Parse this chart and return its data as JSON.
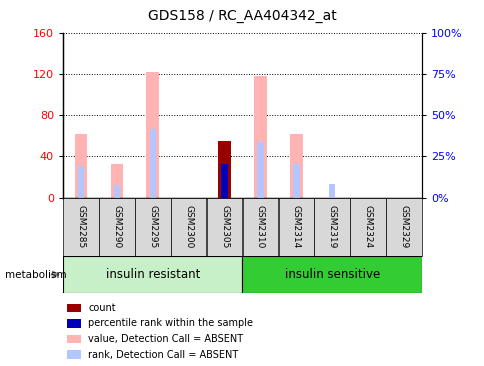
{
  "title": "GDS158 / RC_AA404342_at",
  "samples": [
    "GSM2285",
    "GSM2290",
    "GSM2295",
    "GSM2300",
    "GSM2305",
    "GSM2310",
    "GSM2314",
    "GSM2319",
    "GSM2324",
    "GSM2329"
  ],
  "value_absent": [
    62,
    33,
    122,
    0,
    0,
    118,
    62,
    0,
    0,
    0
  ],
  "rank_absent": [
    31,
    12,
    67,
    0,
    0,
    54,
    33,
    13,
    0,
    0
  ],
  "count": [
    0,
    0,
    0,
    0,
    55,
    0,
    0,
    0,
    0,
    0
  ],
  "percentile_rank": [
    0,
    0,
    0,
    0,
    33,
    0,
    0,
    0,
    0,
    0
  ],
  "ylim_left": [
    0,
    160
  ],
  "ylim_right": [
    0,
    100
  ],
  "yticks_left": [
    0,
    40,
    80,
    120,
    160
  ],
  "yticks_right": [
    0,
    25,
    50,
    75,
    100
  ],
  "ytick_labels_right": [
    "0%",
    "25%",
    "50%",
    "75%",
    "100%"
  ],
  "group1_label": "insulin resistant",
  "group2_label": "insulin sensitive",
  "group1_count": 5,
  "group2_count": 5,
  "metabolism_label": "metabolism",
  "color_value_absent": "#ffb3b3",
  "color_rank_absent": "#b3c6ff",
  "color_count": "#990000",
  "color_percentile": "#0000bb",
  "bar_width": 0.35,
  "rank_bar_width": 0.18,
  "color_group1": "#c8f0c8",
  "color_group2": "#33cc33",
  "legend_items": [
    {
      "label": "count",
      "color": "#990000"
    },
    {
      "label": "percentile rank within the sample",
      "color": "#0000bb"
    },
    {
      "label": "value, Detection Call = ABSENT",
      "color": "#ffb3b3"
    },
    {
      "label": "rank, Detection Call = ABSENT",
      "color": "#b3c6ff"
    }
  ]
}
